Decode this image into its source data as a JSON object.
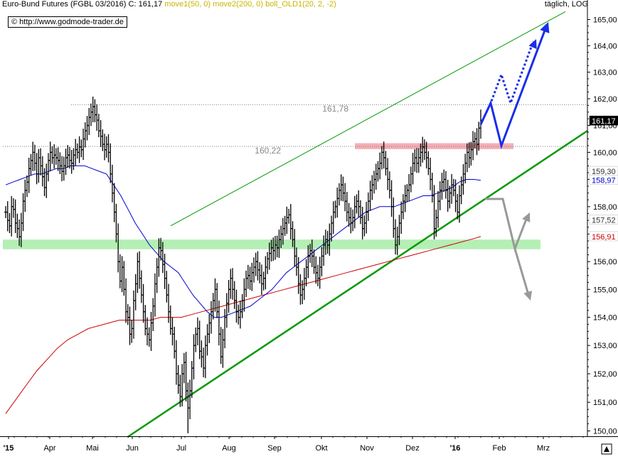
{
  "header": {
    "instrument": "Euro-Bund Futures (FGBL 03/2016) C: 161,17",
    "move1": "move1(50, 0)",
    "move2": "move2(200, 0)",
    "boll": "boll_OLD1(20, 2, -2)",
    "timeframe": "täglich, LOG",
    "copyright": "© http://www.godmode-trader.de"
  },
  "colors": {
    "price_bars": "#000000",
    "ma50": "#0000cc",
    "ma200": "#cc0000",
    "channel_upper": "#009900",
    "channel_lower": "#009900",
    "resistance_zone": "#f5a0a8",
    "support_zone": "#a8eca8",
    "scenario_bull": "#1a2ee8",
    "scenario_bear": "#999999"
  },
  "chart_data": {
    "type": "ohlc",
    "scale": "log",
    "ylim": [
      149.8,
      165.3
    ],
    "y_ticks": [
      "150,00",
      "151,00",
      "152,00",
      "153,00",
      "154,00",
      "155,00",
      "156,00",
      "157,00",
      "158,00",
      "159,00",
      "160,00",
      "161,00",
      "162,00",
      "163,00",
      "164,00",
      "165,00"
    ],
    "x_ticks": [
      "'15",
      "Apr",
      "Mai",
      "Jun",
      "Jul",
      "Aug",
      "Sep",
      "Okt",
      "Nov",
      "Dez",
      "'16",
      "Feb",
      "Mrz"
    ],
    "closes": [
      157.8,
      157.5,
      157.3,
      158.0,
      157.9,
      157.4,
      157.2,
      156.9,
      157.4,
      158.2,
      158.6,
      158.9,
      159.4,
      159.7,
      160.0,
      159.6,
      159.2,
      159.8,
      159.5,
      159.1,
      158.7,
      159.2,
      159.7,
      160.0,
      159.8,
      159.9,
      159.8,
      159.7,
      159.5,
      159.3,
      159.5,
      159.8,
      159.9,
      159.7,
      159.6,
      159.9,
      160.1,
      160.0,
      160.2,
      160.1,
      160.5,
      160.8,
      161.0,
      161.3,
      161.5,
      161.7,
      161.4,
      161.2,
      160.8,
      160.6,
      160.3,
      160.1,
      160.3,
      160.0,
      159.2,
      158.5,
      157.8,
      157.0,
      156.0,
      155.3,
      155.8,
      155.0,
      154.2,
      154.0,
      153.4,
      153.6,
      154.6,
      155.2,
      156.0,
      155.4,
      154.8,
      154.2,
      153.6,
      153.4,
      153.2,
      153.8,
      154.4,
      155.2,
      155.8,
      156.5,
      156.4,
      155.9,
      155.4,
      154.8,
      154.2,
      153.6,
      153.4,
      152.8,
      152.0,
      151.6,
      151.2,
      152.0,
      152.4,
      151.4,
      150.8,
      151.4,
      152.2,
      153.0,
      153.4,
      153.6,
      152.8,
      152.6,
      152.2,
      153.0,
      153.4,
      153.8,
      154.2,
      154.6,
      155.0,
      154.2,
      153.4,
      152.6,
      153.2,
      154.0,
      154.5,
      155.0,
      155.4,
      155.0,
      154.6,
      154.2,
      154.0,
      154.2,
      154.6,
      155.0,
      155.4,
      155.5,
      155.3,
      155.6,
      155.8,
      156.0,
      155.7,
      155.5,
      155.2,
      155.4,
      155.8,
      156.1,
      156.3,
      156.5,
      156.4,
      156.6,
      156.5,
      156.8,
      157.0,
      157.2,
      157.4,
      157.6,
      157.7,
      157.2,
      156.8,
      156.2,
      155.8,
      155.2,
      154.8,
      155.0,
      155.4,
      155.8,
      156.2,
      156.4,
      156.2,
      155.8,
      155.6,
      155.4,
      155.8,
      156.2,
      156.6,
      156.8,
      156.6,
      157.0,
      157.4,
      157.8,
      158.0,
      158.3,
      158.6,
      158.8,
      158.5,
      158.2,
      157.8,
      157.6,
      157.4,
      157.6,
      158.0,
      158.2,
      158.0,
      157.6,
      157.2,
      157.4,
      157.8,
      158.2,
      158.6,
      158.8,
      159.0,
      159.2,
      159.4,
      159.6,
      160.0,
      159.8,
      159.4,
      159.0,
      158.6,
      158.0,
      157.2,
      156.6,
      156.9,
      157.4,
      157.8,
      158.2,
      158.4,
      158.6,
      158.8,
      159.2,
      159.6,
      159.8,
      159.6,
      159.8,
      160.0,
      160.2,
      160.0,
      159.8,
      159.4,
      159.0,
      158.4,
      157.2,
      157.6,
      158.2,
      158.6,
      158.9,
      159.0,
      158.6,
      158.2,
      158.5,
      158.8,
      158.6,
      158.2,
      157.8,
      158.4,
      158.8,
      159.2,
      159.6,
      160.0,
      159.8,
      160.1,
      160.4,
      160.5,
      160.3,
      160.9,
      161.2
    ],
    "ma50": [
      158.8,
      158.9,
      159.0,
      159.1,
      159.2,
      159.2,
      159.3,
      159.4,
      159.4,
      159.5,
      159.5,
      159.5,
      159.4,
      159.3,
      159.2,
      158.8,
      158.4,
      157.9,
      157.4,
      157.0,
      156.6,
      156.3,
      156.0,
      155.8,
      155.6,
      155.2,
      154.8,
      154.5,
      154.2,
      154.0,
      154.0,
      154.1,
      154.2,
      154.3,
      154.4,
      154.6,
      154.8,
      155.0,
      155.3,
      155.6,
      155.8,
      156.0,
      156.2,
      156.4,
      156.6,
      156.8,
      157.0,
      157.2,
      157.4,
      157.6,
      157.8,
      157.9,
      158.0,
      158.0,
      158.0,
      158.1,
      158.2,
      158.3,
      158.4,
      158.4,
      158.5,
      158.6,
      158.7,
      158.9,
      159.0,
      159.0,
      158.97
    ],
    "ma200": [
      150.6,
      151.1,
      151.6,
      152.1,
      152.5,
      152.9,
      153.2,
      153.4,
      153.6,
      153.7,
      153.8,
      153.9,
      153.9,
      153.9,
      153.9,
      154.0,
      154.0,
      154.0,
      154.1,
      154.2,
      154.3,
      154.4,
      154.5,
      154.6,
      154.7,
      154.8,
      154.9,
      155.0,
      155.1,
      155.2,
      155.3,
      155.4,
      155.5,
      155.6,
      155.7,
      155.8,
      155.9,
      156.0,
      156.1,
      156.2,
      156.3,
      156.4,
      156.5,
      156.6,
      156.7,
      156.8,
      156.91
    ],
    "levels": [
      {
        "label": "161,78",
        "value": 161.78
      },
      {
        "label": "160,22",
        "value": 160.22
      }
    ],
    "zones": [
      {
        "name": "resistance",
        "from": 160.12,
        "to": 160.34
      },
      {
        "name": "support",
        "from": 156.45,
        "to": 156.8
      }
    ],
    "axis_labels": [
      {
        "label": "161,17",
        "value": 161.17,
        "bg": "#000000",
        "fg": "#ffffff"
      },
      {
        "label": "159,30",
        "value": 159.3,
        "bg": "#ffffff",
        "fg": "#333333"
      },
      {
        "label": "158,97",
        "value": 158.97,
        "bg": "#ffffff",
        "fg": "#0000cc"
      },
      {
        "label": "157,52",
        "value": 157.52,
        "bg": "#ffffff",
        "fg": "#333333"
      },
      {
        "label": "156,91",
        "value": 156.91,
        "bg": "#ffffff",
        "fg": "#cc0000"
      }
    ],
    "channel": {
      "upper": [
        [
          0.0,
          157.3
        ],
        [
          1.0,
          165.3
        ]
      ],
      "lower": [
        [
          0.0,
          149.8
        ],
        [
          1.0,
          160.8
        ]
      ]
    }
  }
}
